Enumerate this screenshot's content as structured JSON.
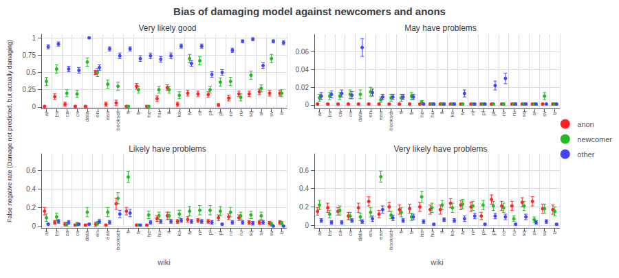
{
  "chart_data": {
    "type": "scatter",
    "title": "Bias of damaging model against newcomers and anons",
    "xlabel": "wiki",
    "ylabel": "False negative rate (Damage not predicted, but actually damaging)",
    "categories": [
      "ar",
      "bs",
      "ca",
      "cs",
      "data",
      "en",
      "eas",
      "bookset",
      "fi",
      "fr",
      "he",
      "hu",
      "it",
      "ko",
      "lv",
      "nl",
      "pl",
      "pt",
      "ro",
      "ru",
      "sq",
      "sr",
      "sv",
      "tr"
    ],
    "legend": "right",
    "grid": true,
    "subplots": [
      {
        "title": "Very likely good",
        "ylim": [
          -0.02,
          1.05
        ],
        "yticks": [
          0,
          0.25,
          0.5,
          0.75,
          1.0
        ],
        "series": [
          {
            "name": "anon",
            "color": "#ff2222",
            "values": [
              0.01,
              0.15,
              0.04,
              0.01,
              0.01,
              0.5,
              0.04,
              0.06,
              0.01,
              0.3,
              0.01,
              0.12,
              0.28,
              0.04,
              0.2,
              0.19,
              0.18,
              0.03,
              0.13,
              0.19,
              0.19,
              0.22,
              0.2,
              0.2
            ],
            "errors": [
              0.01,
              0.04,
              0.03,
              0.01,
              0.01,
              0.03,
              0.03,
              0.04,
              0.01,
              0.04,
              0.01,
              0.04,
              0.04,
              0.03,
              0.04,
              0.04,
              0.04,
              0.02,
              0.04,
              0.04,
              0.04,
              0.04,
              0.04,
              0.04
            ]
          },
          {
            "name": "newcomer",
            "color": "#22bb22",
            "values": [
              0.37,
              0.55,
              0.2,
              0.19,
              0.65,
              0.5,
              0.33,
              0.3,
              0.01,
              0.25,
              0.01,
              0.25,
              0.25,
              0.17,
              0.7,
              0.67,
              0.25,
              0.36,
              0.37,
              0.14,
              0.46,
              0.27,
              0.7,
              0.2
            ],
            "errors": [
              0.06,
              0.06,
              0.05,
              0.05,
              0.06,
              0.06,
              0.06,
              0.06,
              0.01,
              0.05,
              0.01,
              0.05,
              0.05,
              0.05,
              0.06,
              0.06,
              0.05,
              0.06,
              0.06,
              0.05,
              0.06,
              0.05,
              0.06,
              0.05
            ]
          },
          {
            "name": "other",
            "color": "#4444ff",
            "values": [
              0.87,
              0.91,
              0.55,
              0.53,
              1.0,
              0.57,
              0.84,
              0.74,
              0.84,
              0.7,
              0.74,
              0.69,
              0.74,
              0.88,
              0.63,
              0.88,
              0.47,
              0.5,
              0.82,
              0.95,
              0.98,
              0.6,
              0.95,
              0.93
            ],
            "errors": [
              0.03,
              0.03,
              0.04,
              0.04,
              0.01,
              0.04,
              0.03,
              0.04,
              0.03,
              0.04,
              0.04,
              0.04,
              0.04,
              0.03,
              0.04,
              0.03,
              0.04,
              0.04,
              0.03,
              0.02,
              0.02,
              0.04,
              0.02,
              0.03
            ]
          }
        ]
      },
      {
        "title": "May have problems",
        "ylim": [
          -0.004,
          0.08
        ],
        "yticks": [
          0,
          0.02,
          0.04,
          0.06
        ],
        "series": [
          {
            "name": "anon",
            "color": "#ff2222",
            "values": [
              0.001,
              0.001,
              0.001,
              0.001,
              0.001,
              0.001,
              0.001,
              0.001,
              0.001,
              0.001,
              0.001,
              0.001,
              0.001,
              0.001,
              0.001,
              0.001,
              0.001,
              0.001,
              0.001,
              0.001,
              0.001,
              0.001,
              0.001,
              0.001
            ],
            "errors": [
              0.001,
              0.001,
              0.001,
              0.001,
              0.001,
              0.001,
              0.001,
              0.001,
              0.001,
              0.001,
              0.001,
              0.001,
              0.001,
              0.001,
              0.001,
              0.001,
              0.001,
              0.001,
              0.001,
              0.001,
              0.001,
              0.001,
              0.001,
              0.001
            ]
          },
          {
            "name": "newcomer",
            "color": "#22bb22",
            "values": [
              0.008,
              0.01,
              0.01,
              0.012,
              0.012,
              0.015,
              0.006,
              0.008,
              0.008,
              0.01,
              0.003,
              0.001,
              0.001,
              0.001,
              0.001,
              0.001,
              0.001,
              0.001,
              0.001,
              0.001,
              0.001,
              0.001,
              0.01,
              0.001
            ],
            "errors": [
              0.004,
              0.004,
              0.004,
              0.005,
              0.005,
              0.005,
              0.003,
              0.004,
              0.004,
              0.004,
              0.002,
              0.001,
              0.001,
              0.001,
              0.001,
              0.001,
              0.001,
              0.001,
              0.001,
              0.001,
              0.001,
              0.001,
              0.004,
              0.001
            ]
          },
          {
            "name": "other",
            "color": "#4444ff",
            "values": [
              0.01,
              0.012,
              0.013,
              0.011,
              0.065,
              0.014,
              0.009,
              0.009,
              0.009,
              0.009,
              0.001,
              0.001,
              0.001,
              0.001,
              0.013,
              0.001,
              0.001,
              0.022,
              0.03,
              0.001,
              0.001,
              0.001,
              0.001,
              0.001
            ],
            "errors": [
              0.004,
              0.004,
              0.004,
              0.004,
              0.01,
              0.004,
              0.003,
              0.003,
              0.003,
              0.003,
              0.001,
              0.001,
              0.001,
              0.001,
              0.004,
              0.001,
              0.001,
              0.005,
              0.006,
              0.001,
              0.001,
              0.001,
              0.001,
              0.001
            ]
          }
        ]
      },
      {
        "title": "Likely have problems",
        "ylim": [
          -0.02,
          0.78
        ],
        "yticks": [
          0,
          0.2,
          0.4,
          0.6
        ],
        "series": [
          {
            "name": "anon",
            "color": "#ff2222",
            "values": [
              0.16,
              0.04,
              0.02,
              0.01,
              0.01,
              0.02,
              0.01,
              0.24,
              0.16,
              0.01,
              0.01,
              0.08,
              0.11,
              0.05,
              0.07,
              0.06,
              0.05,
              0.09,
              0.1,
              0.09,
              0.04,
              0.04,
              0.03,
              0.04
            ],
            "errors": [
              0.04,
              0.02,
              0.02,
              0.01,
              0.01,
              0.02,
              0.01,
              0.06,
              0.04,
              0.01,
              0.01,
              0.03,
              0.04,
              0.02,
              0.03,
              0.02,
              0.02,
              0.03,
              0.03,
              0.03,
              0.02,
              0.02,
              0.02,
              0.02
            ]
          },
          {
            "name": "newcomer",
            "color": "#22bb22",
            "values": [
              0.09,
              0.1,
              0.02,
              0.02,
              0.15,
              0.03,
              0.15,
              0.3,
              0.53,
              0.01,
              0.12,
              0.11,
              0.11,
              0.13,
              0.16,
              0.17,
              0.17,
              0.16,
              0.15,
              0.11,
              0.12,
              0.11,
              0.02,
              0.03
            ],
            "errors": [
              0.04,
              0.04,
              0.02,
              0.02,
              0.05,
              0.02,
              0.05,
              0.06,
              0.06,
              0.01,
              0.04,
              0.04,
              0.04,
              0.04,
              0.05,
              0.05,
              0.05,
              0.05,
              0.05,
              0.04,
              0.04,
              0.04,
              0.02,
              0.02
            ]
          },
          {
            "name": "other",
            "color": "#4444ff",
            "values": [
              0.02,
              0.05,
              0.04,
              0.02,
              0.02,
              0.05,
              0.04,
              0.13,
              0.14,
              0.01,
              0.04,
              0.05,
              0.05,
              0.06,
              0.05,
              0.05,
              0.04,
              0.02,
              0.04,
              0.04,
              0.03,
              0.04,
              0.0,
              0.0
            ],
            "errors": [
              0.01,
              0.02,
              0.02,
              0.01,
              0.01,
              0.02,
              0.02,
              0.04,
              0.04,
              0.01,
              0.02,
              0.02,
              0.02,
              0.02,
              0.02,
              0.02,
              0.02,
              0.01,
              0.02,
              0.02,
              0.02,
              0.02,
              0.0,
              0.0
            ]
          }
        ]
      },
      {
        "title": "Very likely have problems",
        "ylim": [
          -0.03,
          0.78
        ],
        "yticks": [
          0,
          0.2,
          0.4,
          0.6
        ],
        "series": [
          {
            "name": "anon",
            "color": "#ff2222",
            "values": [
              0.15,
              0.19,
              0.15,
              0.1,
              0.19,
              0.26,
              0.12,
              0.2,
              0.17,
              0.18,
              0.2,
              0.17,
              0.17,
              0.24,
              0.22,
              0.2,
              0.1,
              0.28,
              0.21,
              0.21,
              0.25,
              0.26,
              0.18,
              0.17
            ],
            "errors": [
              0.04,
              0.05,
              0.04,
              0.04,
              0.05,
              0.05,
              0.04,
              0.05,
              0.05,
              0.05,
              0.05,
              0.05,
              0.05,
              0.05,
              0.05,
              0.05,
              0.04,
              0.05,
              0.05,
              0.05,
              0.05,
              0.05,
              0.05,
              0.05
            ]
          },
          {
            "name": "newcomer",
            "color": "#22bb22",
            "values": [
              0.22,
              0.12,
              0.16,
              0.1,
              0.09,
              0.14,
              0.53,
              0.11,
              0.14,
              0.09,
              0.31,
              0.19,
              0.22,
              0.19,
              0.23,
              0.21,
              0.22,
              0.21,
              0.19,
              0.07,
              0.21,
              0.06,
              0.18,
              0.15
            ],
            "errors": [
              0.05,
              0.04,
              0.05,
              0.04,
              0.04,
              0.05,
              0.06,
              0.04,
              0.05,
              0.04,
              0.06,
              0.05,
              0.05,
              0.05,
              0.05,
              0.05,
              0.05,
              0.05,
              0.05,
              0.03,
              0.05,
              0.03,
              0.05,
              0.05
            ]
          },
          {
            "name": "other",
            "color": "#4444ff",
            "values": [
              0.05,
              0.03,
              0.03,
              0.05,
              0.04,
              0.07,
              0.17,
              0.08,
              0.05,
              0.09,
              0.04,
              0.01,
              0.06,
              0.05,
              0.07,
              0.1,
              0.01,
              0.1,
              0.09,
              0.01,
              0.09,
              0.03,
              0.04,
              0.01
            ],
            "errors": [
              0.02,
              0.02,
              0.02,
              0.02,
              0.02,
              0.03,
              0.04,
              0.03,
              0.02,
              0.03,
              0.02,
              0.01,
              0.02,
              0.02,
              0.03,
              0.03,
              0.01,
              0.03,
              0.03,
              0.01,
              0.03,
              0.02,
              0.02,
              0.01
            ]
          }
        ]
      }
    ]
  }
}
